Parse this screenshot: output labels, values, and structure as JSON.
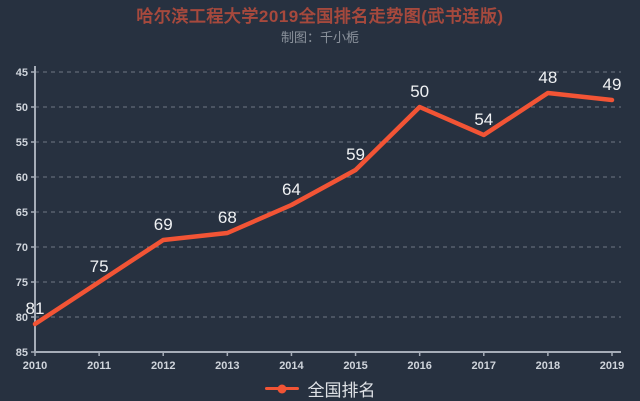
{
  "header": {
    "title": "哈尔滨工程大学2019全国排名走势图(武书连版)",
    "subtitle": "制图：千小栀"
  },
  "chart_data": {
    "type": "line",
    "title": "哈尔滨工程大学2019全国排名走势图(武书连版)",
    "categories": [
      "2010",
      "2011",
      "2012",
      "2013",
      "2014",
      "2015",
      "2016",
      "2017",
      "2018",
      "2019"
    ],
    "series": [
      {
        "name": "全国排名",
        "values": [
          81,
          75,
          69,
          68,
          64,
          59,
          50,
          54,
          48,
          49
        ],
        "color": "#f25435"
      }
    ],
    "xlabel": "",
    "ylabel": "",
    "ylim": [
      45,
      85
    ],
    "y_step": 5,
    "y_inverted": true,
    "grid": true,
    "grid_style": "dashed",
    "data_labels": true,
    "legend_position": "bottom"
  },
  "legend": {
    "items": [
      {
        "label": "全国排名",
        "color": "#f25435"
      }
    ]
  },
  "colors": {
    "background": "#273140",
    "title": "#a6493d",
    "subtitle": "#8b929c",
    "axis": "#a6adb8",
    "tick_label": "#cfd4db",
    "grid": "#6f7785",
    "data_label": "#f0f2f4",
    "line": "#f25435"
  }
}
